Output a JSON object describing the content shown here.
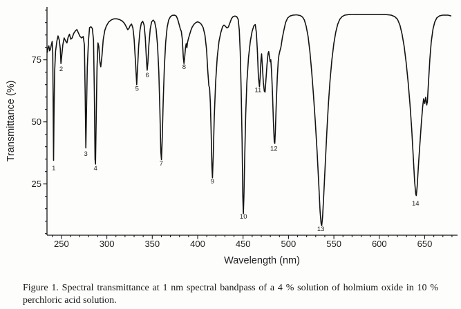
{
  "figure": {
    "caption_line1": "Figure 1.  Spectral transmittance at 1 nm spectral bandpass of a 4 % solution of holmium oxide in 10 %",
    "caption_line2": "perchloric acid solution."
  },
  "chart_data": {
    "type": "line",
    "title": "",
    "xlabel": "Wavelength (nm)",
    "ylabel": "Transmittance (%)",
    "grid": false,
    "legend": "none",
    "line_color": "#141414",
    "x_axis_range": [
      234.4,
      687
    ],
    "y_axis_range": [
      4.4,
      96.3
    ],
    "x_ticks_major": [
      250,
      300,
      350,
      400,
      450,
      500,
      550,
      600,
      650
    ],
    "x_minor_step": 10,
    "y_ticks_major": [
      25,
      50,
      75
    ],
    "y_minor_step": 5,
    "peak_labels": [
      {
        "n": 1,
        "wavelength": 241.5,
        "transmittance": 31.5
      },
      {
        "n": 2,
        "wavelength": 249.7,
        "transmittance": 71.5
      },
      {
        "n": 3,
        "wavelength": 276.8,
        "transmittance": 37.3
      },
      {
        "n": 4,
        "wavelength": 287.5,
        "transmittance": 31.5
      },
      {
        "n": 5,
        "wavelength": 333.2,
        "transmittance": 63.5
      },
      {
        "n": 6,
        "wavelength": 344.6,
        "transmittance": 69.0
      },
      {
        "n": 7,
        "wavelength": 359.9,
        "transmittance": 33.4
      },
      {
        "n": 8,
        "wavelength": 385.1,
        "transmittance": 72.3
      },
      {
        "n": 9,
        "wavelength": 416.2,
        "transmittance": 26.2
      },
      {
        "n": 10,
        "wavelength": 450.4,
        "transmittance": 12.0
      },
      {
        "n": 11,
        "wavelength": 466.5,
        "transmittance": 63.0
      },
      {
        "n": 12,
        "wavelength": 483.9,
        "transmittance": 39.3
      },
      {
        "n": 13,
        "wavelength": 535.6,
        "transmittance": 7.0
      },
      {
        "n": 14,
        "wavelength": 639.9,
        "transmittance": 17.3
      }
    ],
    "series": [
      {
        "name": "4 % holmium oxide in 10 % perchloric acid, 1 nm bandpass",
        "points": [
          [
            234.4,
            78
          ],
          [
            235.2,
            79.8
          ],
          [
            236.1,
            80.6
          ],
          [
            237.0,
            78.6
          ],
          [
            238.0,
            79.4
          ],
          [
            239.0,
            81.2
          ],
          [
            239.8,
            82.4
          ],
          [
            240.4,
            78
          ],
          [
            240.8,
            62
          ],
          [
            241.3,
            34.5
          ],
          [
            241.8,
            52
          ],
          [
            242.5,
            70
          ],
          [
            243.5,
            78.5
          ],
          [
            245.0,
            82.5
          ],
          [
            246.3,
            84.6
          ],
          [
            247.6,
            83
          ],
          [
            248.7,
            79.5
          ],
          [
            249.5,
            73.5
          ],
          [
            250.3,
            76.5
          ],
          [
            251.5,
            81
          ],
          [
            253.0,
            83.8
          ],
          [
            254.5,
            82.6
          ],
          [
            256.0,
            81.8
          ],
          [
            257.3,
            84
          ],
          [
            258.8,
            85.3
          ],
          [
            260.3,
            83.3
          ],
          [
            261.8,
            83.8
          ],
          [
            263.5,
            85.6
          ],
          [
            265.3,
            86.6
          ],
          [
            267.0,
            87.2
          ],
          [
            268.7,
            85.8
          ],
          [
            270.5,
            84.4
          ],
          [
            272.3,
            83.8
          ],
          [
            274.0,
            84.4
          ],
          [
            275.3,
            81
          ],
          [
            276.2,
            60
          ],
          [
            276.9,
            39.5
          ],
          [
            277.6,
            55
          ],
          [
            278.5,
            72
          ],
          [
            279.8,
            83
          ],
          [
            281.0,
            88
          ],
          [
            282.5,
            88.3
          ],
          [
            284.0,
            87.6
          ],
          [
            285.3,
            83
          ],
          [
            286.2,
            62
          ],
          [
            287.0,
            35
          ],
          [
            287.5,
            33
          ],
          [
            288.1,
            48
          ],
          [
            289.2,
            72
          ],
          [
            290.2,
            81.8
          ],
          [
            291.2,
            80.4
          ],
          [
            292.4,
            74
          ],
          [
            293.3,
            72.2
          ],
          [
            294.6,
            76.5
          ],
          [
            296.0,
            83
          ],
          [
            297.7,
            86.8
          ],
          [
            299.5,
            88.6
          ],
          [
            302,
            90.2
          ],
          [
            305,
            91.1
          ],
          [
            308,
            91.5
          ],
          [
            311,
            91.5
          ],
          [
            314,
            91.2
          ],
          [
            317,
            90.6
          ],
          [
            319.5,
            89.6
          ],
          [
            321.5,
            88.2
          ],
          [
            323,
            87.1
          ],
          [
            324.3,
            87.6
          ],
          [
            325.8,
            88.9
          ],
          [
            327.2,
            89.4
          ],
          [
            328.7,
            87.8
          ],
          [
            330,
            83.5
          ],
          [
            331.7,
            73
          ],
          [
            332.9,
            65
          ],
          [
            333.9,
            72
          ],
          [
            335,
            80.5
          ],
          [
            336.5,
            87
          ],
          [
            338,
            89.8
          ],
          [
            339.5,
            90.5
          ],
          [
            341,
            89
          ],
          [
            342.3,
            84
          ],
          [
            343.6,
            75
          ],
          [
            344.4,
            70.8
          ],
          [
            345.2,
            74
          ],
          [
            346.3,
            81
          ],
          [
            347.8,
            87.5
          ],
          [
            349.3,
            90.3
          ],
          [
            351,
            91
          ],
          [
            352.6,
            90.3
          ],
          [
            354.2,
            87.5
          ],
          [
            355.8,
            81
          ],
          [
            357.2,
            70
          ],
          [
            358.4,
            55
          ],
          [
            359.4,
            38
          ],
          [
            360.1,
            34.8
          ],
          [
            360.9,
            42
          ],
          [
            362,
            58
          ],
          [
            363.3,
            72
          ],
          [
            364.8,
            82
          ],
          [
            366.4,
            88
          ],
          [
            368,
            91
          ],
          [
            370,
            92.4
          ],
          [
            372,
            92.9
          ],
          [
            374.5,
            93
          ],
          [
            376.5,
            92.6
          ],
          [
            378,
            91.3
          ],
          [
            379.5,
            89.3
          ],
          [
            381,
            87.3
          ],
          [
            382,
            86.5
          ],
          [
            383,
            83.5
          ],
          [
            384.2,
            76
          ],
          [
            384.9,
            73.5
          ],
          [
            385.7,
            76
          ],
          [
            386.6,
            80
          ],
          [
            387.4,
            81.5
          ],
          [
            388.1,
            79.8
          ],
          [
            388.8,
            82
          ],
          [
            389.8,
            83.5
          ],
          [
            391,
            85
          ],
          [
            392.5,
            86.8
          ],
          [
            394,
            88.2
          ],
          [
            396,
            89.3
          ],
          [
            398,
            90
          ],
          [
            400,
            90.3
          ],
          [
            402,
            90
          ],
          [
            404,
            89.3
          ],
          [
            406,
            88
          ],
          [
            408,
            85
          ],
          [
            409.8,
            79
          ],
          [
            411,
            71
          ],
          [
            412.3,
            64.5
          ],
          [
            413.1,
            63.8
          ],
          [
            413.9,
            58
          ],
          [
            414.8,
            47
          ],
          [
            415.7,
            32
          ],
          [
            416.3,
            27.5
          ],
          [
            417.1,
            36
          ],
          [
            418.3,
            52
          ],
          [
            419.8,
            66
          ],
          [
            421.5,
            76
          ],
          [
            423.5,
            82.5
          ],
          [
            425.5,
            86
          ],
          [
            427.5,
            88.4
          ],
          [
            429,
            89
          ],
          [
            430.8,
            88.4
          ],
          [
            432.3,
            87.8
          ],
          [
            433.8,
            88.2
          ],
          [
            435.5,
            89.8
          ],
          [
            437.3,
            91.6
          ],
          [
            439,
            92.4
          ],
          [
            441,
            92.6
          ],
          [
            443,
            92.4
          ],
          [
            444.6,
            91.3
          ],
          [
            445.8,
            87
          ],
          [
            446.9,
            78
          ],
          [
            447.9,
            63
          ],
          [
            448.9,
            42
          ],
          [
            449.7,
            20
          ],
          [
            450.3,
            13
          ],
          [
            450.9,
            20
          ],
          [
            451.8,
            36
          ],
          [
            452.9,
            53
          ],
          [
            454.2,
            66
          ],
          [
            456,
            76
          ],
          [
            458,
            82.5
          ],
          [
            460,
            86.5
          ],
          [
            462,
            88.8
          ],
          [
            463.4,
            89.2
          ],
          [
            464.6,
            86
          ],
          [
            465.8,
            78
          ],
          [
            466.9,
            68
          ],
          [
            468.0,
            64.2
          ],
          [
            468.8,
            68
          ],
          [
            469.7,
            75
          ],
          [
            470.4,
            77.4
          ],
          [
            471.3,
            72
          ],
          [
            472.3,
            66
          ],
          [
            473.4,
            62.4
          ],
          [
            474.2,
            62
          ],
          [
            475.2,
            67
          ],
          [
            476.3,
            73
          ],
          [
            477.5,
            77.5
          ],
          [
            478.2,
            78.3
          ],
          [
            479.0,
            76.4
          ],
          [
            479.8,
            74.2
          ],
          [
            480.5,
            75
          ],
          [
            481.4,
            70
          ],
          [
            482.4,
            61
          ],
          [
            483.4,
            50
          ],
          [
            484.3,
            42
          ],
          [
            484.9,
            41.3
          ],
          [
            485.6,
            47
          ],
          [
            486.6,
            58
          ],
          [
            487.7,
            68
          ],
          [
            488.7,
            74.5
          ],
          [
            489.5,
            76.9
          ],
          [
            490.5,
            78.5
          ],
          [
            491.6,
            80
          ],
          [
            493.2,
            83.8
          ],
          [
            495,
            87
          ],
          [
            496.8,
            90
          ],
          [
            499,
            91.8
          ],
          [
            501.5,
            92.6
          ],
          [
            505,
            93
          ],
          [
            509,
            93.1
          ],
          [
            513,
            92.8
          ],
          [
            515.5,
            92.2
          ],
          [
            517.5,
            91
          ],
          [
            519.5,
            88.5
          ],
          [
            521.5,
            84.5
          ],
          [
            523.5,
            78.5
          ],
          [
            525.5,
            70.5
          ],
          [
            527.5,
            61
          ],
          [
            529.5,
            50
          ],
          [
            531.5,
            38
          ],
          [
            533.3,
            25
          ],
          [
            534.8,
            14
          ],
          [
            535.9,
            9
          ],
          [
            536.6,
            8.2
          ],
          [
            537.6,
            12
          ],
          [
            538.9,
            21
          ],
          [
            540.5,
            33
          ],
          [
            542.2,
            46
          ],
          [
            543.9,
            57
          ],
          [
            545.8,
            67
          ],
          [
            547.8,
            75
          ],
          [
            549.9,
            81.5
          ],
          [
            552,
            86
          ],
          [
            554.2,
            89.3
          ],
          [
            556.5,
            91.3
          ],
          [
            559,
            92.4
          ],
          [
            562,
            93
          ],
          [
            566,
            93.2
          ],
          [
            572,
            93.3
          ],
          [
            580,
            93.3
          ],
          [
            590,
            93.3
          ],
          [
            600,
            93.3
          ],
          [
            608,
            93.2
          ],
          [
            613,
            93
          ],
          [
            617,
            92.4
          ],
          [
            620,
            91.3
          ],
          [
            622.7,
            89
          ],
          [
            625,
            85.5
          ],
          [
            627.3,
            80.5
          ],
          [
            629.5,
            74
          ],
          [
            631.7,
            66
          ],
          [
            633.8,
            57
          ],
          [
            635.7,
            47
          ],
          [
            637.4,
            36
          ],
          [
            638.9,
            26
          ],
          [
            640.1,
            21
          ],
          [
            640.7,
            20.3
          ],
          [
            641.7,
            24
          ],
          [
            643.1,
            32.4
          ],
          [
            644.7,
            41
          ],
          [
            646.2,
            49
          ],
          [
            647.7,
            56
          ],
          [
            648.8,
            59.3
          ],
          [
            650,
            57.4
          ],
          [
            651.1,
            59.9
          ],
          [
            652.2,
            56.8
          ],
          [
            653,
            58.2
          ],
          [
            654.1,
            65.7
          ],
          [
            655.7,
            75.5
          ],
          [
            657.2,
            82.4
          ],
          [
            659.1,
            87.4
          ],
          [
            661,
            90.2
          ],
          [
            663.3,
            91.9
          ],
          [
            666.3,
            92.7
          ],
          [
            670,
            93
          ],
          [
            675.4,
            93
          ],
          [
            678.8,
            92.7
          ]
        ]
      }
    ]
  }
}
